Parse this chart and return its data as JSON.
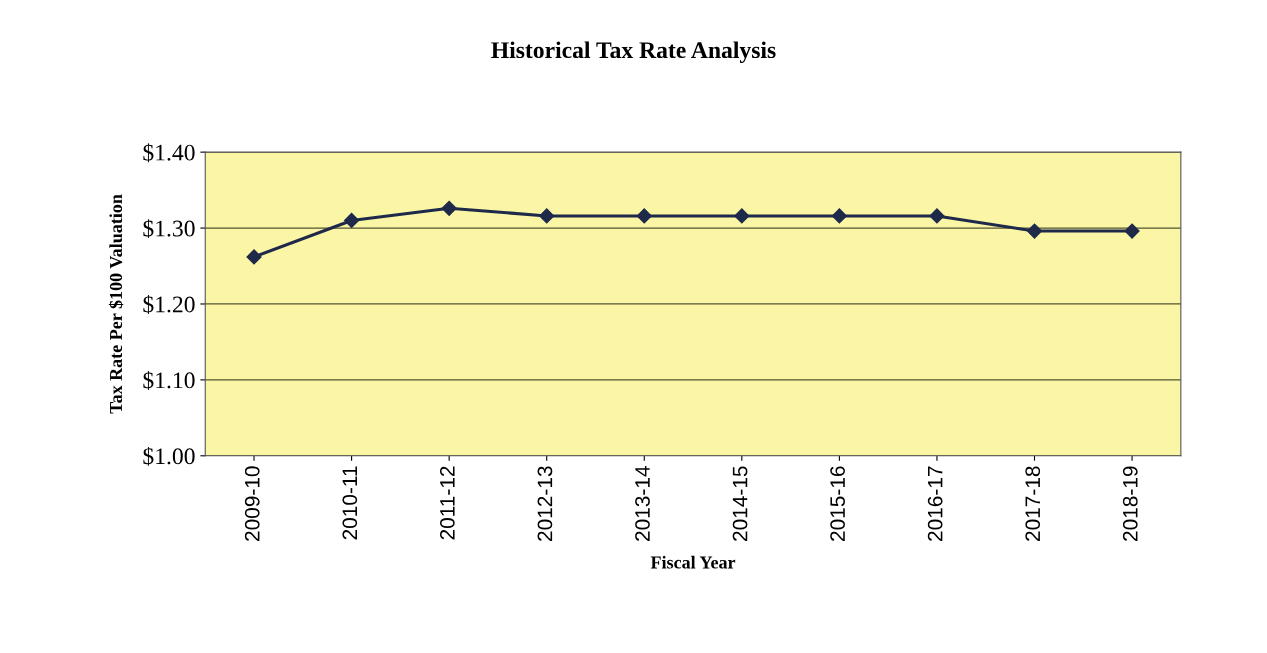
{
  "chart_data": {
    "type": "line",
    "title": "Historical Tax Rate Analysis",
    "xlabel": "Fiscal Year",
    "ylabel": "Tax Rate Per $100 Valuation",
    "categories": [
      "2009-10",
      "2010-11",
      "2011-12",
      "2012-13",
      "2013-14",
      "2014-15",
      "2015-16",
      "2016-17",
      "2017-18",
      "2018-19"
    ],
    "series": [
      {
        "color": "#1f2a4a",
        "values": [
          1.262,
          1.31,
          1.326,
          1.316,
          1.316,
          1.316,
          1.316,
          1.316,
          1.296,
          1.296
        ]
      }
    ],
    "ylim": [
      1.0,
      1.4
    ],
    "yticks": [
      {
        "value": 1.0,
        "label": "$1.00"
      },
      {
        "value": 1.1,
        "label": "$1.10"
      },
      {
        "value": 1.2,
        "label": "$1.20"
      },
      {
        "value": 1.3,
        "label": "$1.30"
      },
      {
        "value": 1.4,
        "label": "$1.40"
      }
    ],
    "grid": "y",
    "marker": "diamond",
    "line_style": "solid",
    "legend": false
  }
}
